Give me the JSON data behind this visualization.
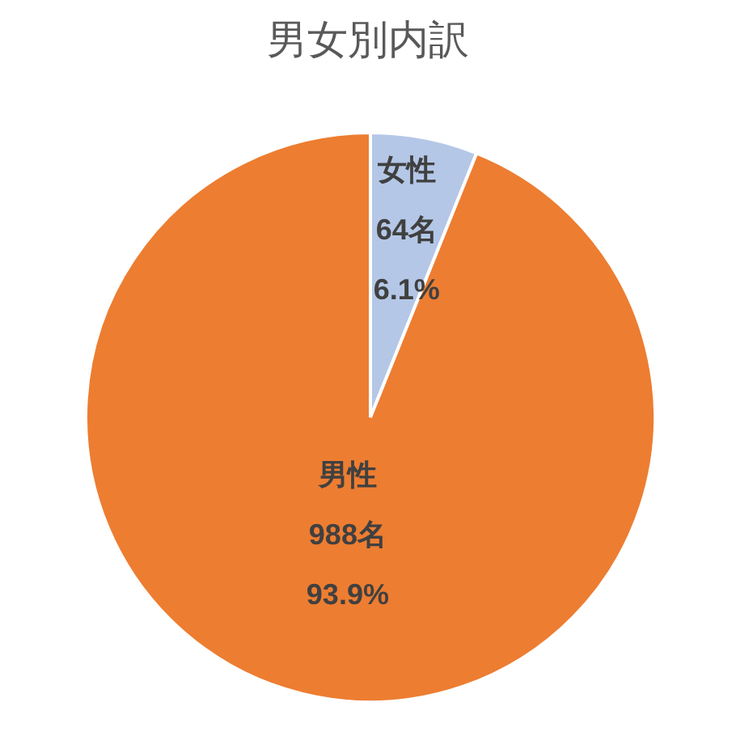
{
  "chart_data": {
    "type": "pie",
    "title": "男女別内訳",
    "categories": [
      "女性",
      "男性"
    ],
    "values": [
      64,
      988
    ],
    "colors": [
      "#b4c7e7",
      "#ed7d31"
    ],
    "value_labels": [
      "64名\n6.1%",
      "988名\n93.9%"
    ]
  }
}
